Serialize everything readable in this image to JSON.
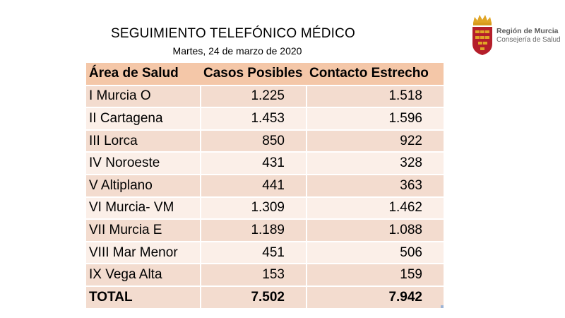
{
  "header": {
    "title": "SEGUIMIENTO TELEFÓNICO MÉDICO",
    "date": "Martes, 24 de marzo de 2020"
  },
  "logo": {
    "org": "Región de Murcia",
    "dept": "Consejería de Salud",
    "icon": "coat-of-arms"
  },
  "table": {
    "columns": [
      "Área de Salud",
      "Casos Posibles",
      "Contacto Estrecho"
    ],
    "rows": [
      [
        "I Murcia O",
        "1.225",
        "1.518"
      ],
      [
        "II Cartagena",
        "1.453",
        "1.596"
      ],
      [
        "III Lorca",
        "850",
        "922"
      ],
      [
        "IV Noroeste",
        "431",
        "328"
      ],
      [
        "V Altiplano",
        "441",
        "363"
      ],
      [
        "VI Murcia- VM",
        "1.309",
        "1.462"
      ],
      [
        "VII Murcia E",
        "1.189",
        "1.088"
      ],
      [
        "VIII Mar Menor",
        "451",
        "506"
      ],
      [
        "IX Vega Alta",
        "153",
        "159"
      ]
    ],
    "total": [
      "TOTAL",
      "7.502",
      "7.942"
    ]
  },
  "colors": {
    "header_fill": "#f4c7a8",
    "row_dark": "#f3dccf",
    "row_light": "#fbefe8",
    "logo_red": "#b41e2a",
    "logo_gold": "#e0a526"
  }
}
